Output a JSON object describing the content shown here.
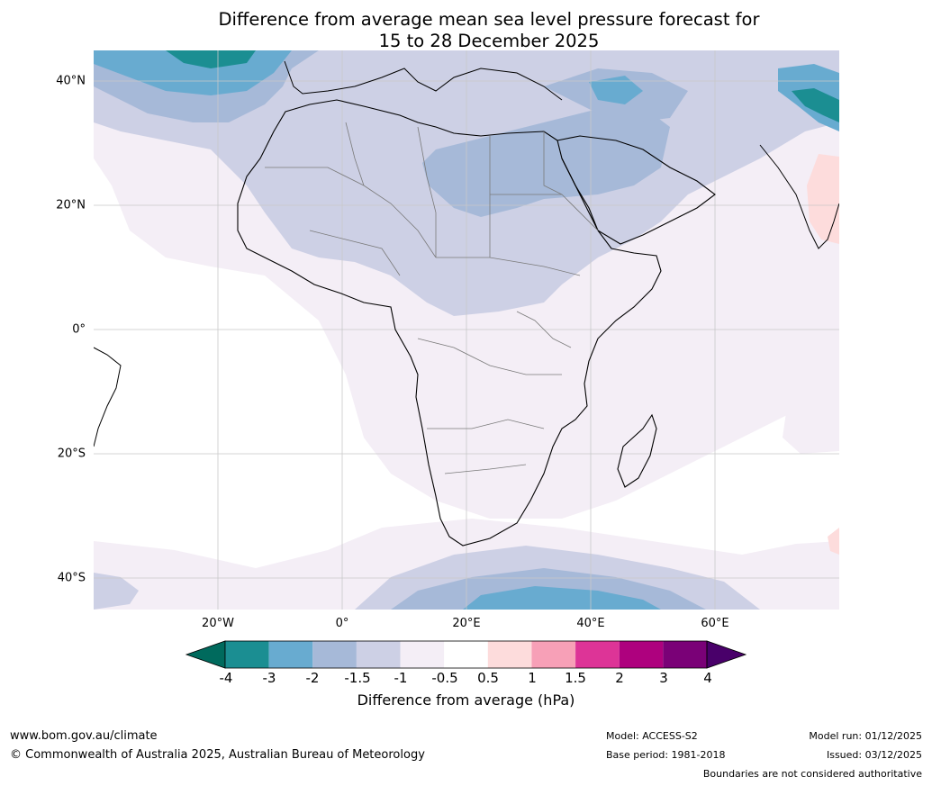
{
  "title": {
    "line1": "Difference from average mean sea level pressure forecast for",
    "line2": "15 to 28 December 2025"
  },
  "map": {
    "lat_labels": [
      "40°N",
      "20°N",
      "0°",
      "20°S",
      "40°S"
    ],
    "lon_labels": [
      "20°W",
      "0°",
      "20°E",
      "40°E",
      "60°E"
    ]
  },
  "colorbar": {
    "ticks": [
      "-4",
      "-3",
      "-2",
      "-1.5",
      "-1",
      "-0.5",
      "0.5",
      "1",
      "1.5",
      "2",
      "3",
      "4"
    ],
    "colors": [
      "#006a5d",
      "#1b8e92",
      "#68abd0",
      "#a6b9d8",
      "#cdd0e5",
      "#f4eef6",
      "#ffffff",
      "#fddcdc",
      "#f7a0b7",
      "#dd3497",
      "#ae017e",
      "#7a0177",
      "#49006a"
    ],
    "label": "Difference from average (hPa)"
  },
  "footer": {
    "website": "www.bom.gov.au/climate",
    "copyright": "© Commonwealth of Australia 2025, Australian Bureau of Meteorology",
    "model": "Model: ACCESS-S2",
    "base_period": "Base period: 1981-2018",
    "model_run": "Model run: 01/12/2025",
    "issued": "Issued: 03/12/2025",
    "disclaimer": "Boundaries are not considered authoritative"
  }
}
